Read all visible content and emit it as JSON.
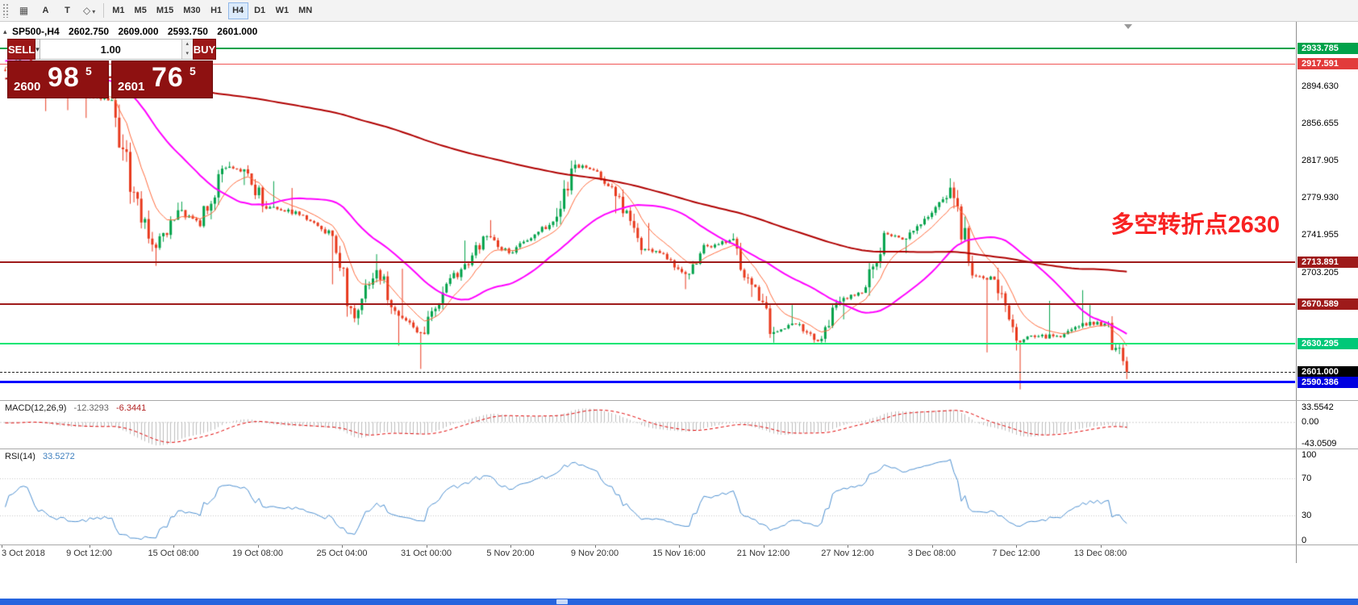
{
  "toolbar": {
    "icons": [
      {
        "name": "grid-icon",
        "glyph": "▦"
      },
      {
        "name": "text-a-icon",
        "glyph": "A"
      },
      {
        "name": "text-label-icon",
        "glyph": "T"
      },
      {
        "name": "shapes-icon",
        "glyph": "◇"
      }
    ],
    "caret": "▾",
    "timeframes": [
      "M1",
      "M5",
      "M15",
      "M30",
      "H1",
      "H4",
      "D1",
      "W1",
      "MN"
    ],
    "active_timeframe": "H4"
  },
  "quote_bar": {
    "marker": "▴",
    "symbol": "SP500-,H4",
    "open": "2602.750",
    "high": "2609.000",
    "low": "2593.750",
    "close": "2601.000"
  },
  "trade_panel": {
    "sell_label": "SELL",
    "buy_label": "BUY",
    "volume": "1.00",
    "dropdown_glyph": "▾",
    "spin_up": "▴",
    "spin_down": "▾",
    "sell_price": {
      "prefix": "2600",
      "big": "98",
      "sup": "5"
    },
    "buy_price": {
      "prefix": "2601",
      "big": "76",
      "sup": "5"
    },
    "panel_color": "#8E1111",
    "button_color": "#9C1717"
  },
  "annotation": {
    "text": "多空转折点2630",
    "color": "#F82222"
  },
  "price_axis": {
    "ticks": [
      {
        "label": "2894.630",
        "value": 2894.63
      },
      {
        "label": "2856.655",
        "value": 2856.655
      },
      {
        "label": "2817.905",
        "value": 2817.905
      },
      {
        "label": "2779.930",
        "value": 2779.93
      },
      {
        "label": "2741.955",
        "value": 2741.955
      },
      {
        "label": "2703.205",
        "value": 2703.205
      }
    ],
    "badges": [
      {
        "label": "2933.785",
        "value": 2933.785,
        "color": "#00A24A"
      },
      {
        "label": "2917.591",
        "value": 2917.591,
        "color": "#E23B3B"
      },
      {
        "label": "2713.891",
        "value": 2713.891,
        "color": "#9E1A1A"
      },
      {
        "label": "2670.589",
        "value": 2670.589,
        "color": "#9E1A1A"
      },
      {
        "label": "2630.295",
        "value": 2630.295,
        "color": "#00C878"
      },
      {
        "label": "2601.000",
        "value": 2601.0,
        "color": "#000000"
      },
      {
        "label": "2590.386",
        "value": 2590.386,
        "color": "#0000E0"
      }
    ]
  },
  "chart_data": {
    "type": "candlestick",
    "symbol": "SP500-",
    "timeframe": "H4",
    "current_bar_ohlc": {
      "open": 2602.75,
      "high": 2609.0,
      "low": 2593.75,
      "close": 2601.0
    },
    "y_range": [
      2572,
      2960
    ],
    "bars_per_day": 6,
    "x_labels": [
      "3 Oct 2018",
      "9 Oct 12:00",
      "15 Oct 08:00",
      "19 Oct 08:00",
      "25 Oct 04:00",
      "31 Oct 00:00",
      "5 Nov 20:00",
      "9 Nov 20:00",
      "15 Nov 16:00",
      "21 Nov 12:00",
      "27 Nov 12:00",
      "3 Dec 08:00",
      "7 Dec 12:00",
      "13 Dec 08:00"
    ],
    "daily_path_format": "[close, low_or_null, high_or_null] per trading day, 3 Oct - 14 Dec 2018",
    "daily_path": [
      [
        2925.7,
        null,
        2932
      ],
      [
        2901.6,
        2869,
        null
      ],
      [
        2885.6,
        2870,
        null
      ],
      [
        2884.4,
        2862,
        null
      ],
      [
        2880.3,
        null,
        2897
      ],
      [
        2785.7,
        2784,
        null
      ],
      [
        2728.4,
        2710,
        null
      ],
      [
        2767.1,
        null,
        2775
      ],
      [
        2750.8,
        2750,
        2776
      ],
      [
        2809.9,
        null,
        2813
      ],
      [
        2809.2,
        2793,
        2817
      ],
      [
        2768.8,
        2765,
        null
      ],
      [
        2767.8,
        null,
        2797
      ],
      [
        2755.9,
        null,
        2790
      ],
      [
        2740.7,
        2691,
        null
      ],
      [
        2656.1,
        2652,
        null
      ],
      [
        2705.6,
        null,
        2722
      ],
      [
        2658.7,
        2628,
        null
      ],
      [
        2641.3,
        2604,
        2707
      ],
      [
        2682.6,
        null,
        null
      ],
      [
        2711.7,
        null,
        2736
      ],
      [
        2740.4,
        null,
        null
      ],
      [
        2723.1,
        null,
        2757
      ],
      [
        2738.3,
        null,
        null
      ],
      [
        2755.5,
        null,
        null
      ],
      [
        2813.9,
        null,
        2815
      ],
      [
        2806.8,
        null,
        2815
      ],
      [
        2781.0,
        2764,
        null
      ],
      [
        2726.2,
        null,
        null
      ],
      [
        2722.2,
        null,
        2754
      ],
      [
        2701.6,
        2686,
        null
      ],
      [
        2730.2,
        2696,
        null
      ],
      [
        2736.3,
        null,
        null
      ],
      [
        2690.7,
        2678,
        null
      ],
      [
        2641.9,
        2631,
        null
      ],
      [
        2649.9,
        null,
        2670
      ],
      [
        2632.6,
        2631,
        null
      ],
      [
        2673.5,
        null,
        null
      ],
      [
        2682.2,
        2655,
        null
      ],
      [
        2743.8,
        null,
        2746
      ],
      [
        2737.8,
        2723,
        null
      ],
      [
        2760.2,
        null,
        null
      ],
      [
        2790.4,
        null,
        2800
      ],
      [
        2700.1,
        2697,
        null
      ],
      [
        2695.9,
        2621,
        null
      ],
      [
        2633.1,
        2623,
        2708
      ],
      [
        2637.7,
        2583,
        null
      ],
      [
        2636.8,
        null,
        2674
      ],
      [
        2651.1,
        null,
        2685
      ],
      [
        2650.5,
        null,
        2670
      ],
      [
        2601.0,
        2594,
        2653
      ]
    ],
    "levels": [
      {
        "price": 2933.785,
        "color": "#00A24A",
        "width": 2
      },
      {
        "price": 2917.591,
        "color": "#F05454",
        "width": 1
      },
      {
        "price": 2713.891,
        "color": "#9E1A1A",
        "width": 2
      },
      {
        "price": 2670.589,
        "color": "#9E1A1A",
        "width": 2
      },
      {
        "price": 2630.295,
        "color": "#00E673",
        "width": 2
      },
      {
        "price": 2590.386,
        "color": "#0202FF",
        "width": 3
      }
    ],
    "bid_line": {
      "price": 2601.0,
      "color": "#222222"
    },
    "moving_averages": [
      {
        "type": "ema",
        "period": 10,
        "color": "#FF6A3C",
        "width": 1
      },
      {
        "type": "sma",
        "period": 34,
        "color": "#FF00FF",
        "width": 2
      },
      {
        "type": "sma",
        "period": 200,
        "color": "#B00000",
        "width": 2
      }
    ],
    "candle_up_color": "#00A24A",
    "candle_down_color": "#E8391D",
    "indicators": {
      "macd": {
        "title": "MACD(12,26,9)",
        "value": "-12.3293",
        "signal": "-6.3441",
        "min": -43.0509,
        "max": 33.5542,
        "axis": [
          {
            "label": "33.5542",
            "value": 33.5542
          },
          {
            "label": "0.00",
            "value": 0
          },
          {
            "label": "-43.0509",
            "value": -43.0509
          }
        ],
        "histogram_color": "#BDBDBD",
        "signal_color": "#E00000"
      },
      "rsi": {
        "title": "RSI(14)",
        "value": "33.5272",
        "min": 0,
        "max": 100,
        "levels": [
          70,
          30
        ],
        "axis": [
          {
            "label": "100",
            "value": 100
          },
          {
            "label": "70",
            "value": 70
          },
          {
            "label": "30",
            "value": 30
          },
          {
            "label": "0",
            "value": 0
          }
        ],
        "line_color": "#4C8FD0"
      }
    }
  },
  "taskbar": {
    "color": "#2664DE"
  }
}
